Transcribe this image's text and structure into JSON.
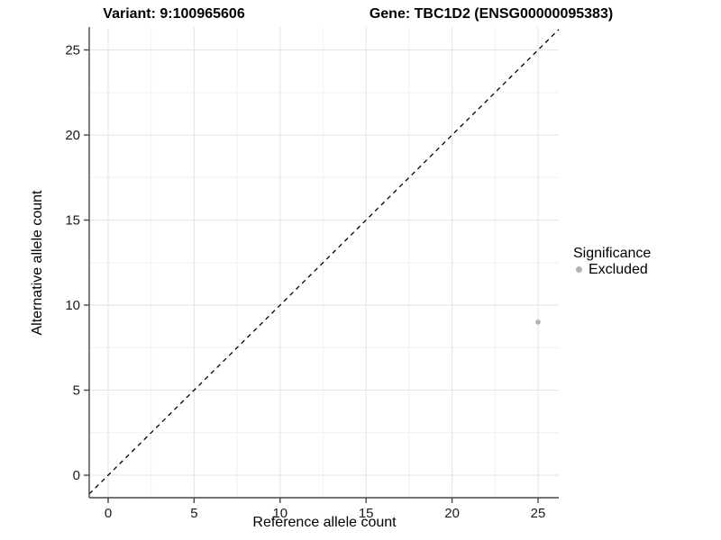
{
  "chart_data": {
    "type": "scatter",
    "title_left": "Variant: 9:100965606",
    "title_right": "Gene: TBC1D2 (ENSG00000095383)",
    "xlabel": "Reference allele count",
    "ylabel": "Alternative allele count",
    "xlim": [
      0,
      25
    ],
    "ylim": [
      0,
      25
    ],
    "x_ticks": [
      0,
      5,
      10,
      15,
      20,
      25
    ],
    "y_ticks": [
      0,
      5,
      10,
      15,
      20,
      25
    ],
    "grid": "major and minor, light gray on white panel",
    "reference_line": {
      "type": "abline",
      "slope": 1,
      "intercept": 0,
      "style": "dashed",
      "color": "#000000"
    },
    "points": [
      {
        "x": 25,
        "y": 9,
        "significance": "Excluded",
        "color": "#b3b3b3"
      }
    ],
    "legend": {
      "title": "Significance",
      "position": "right",
      "entries": [
        {
          "label": "Excluded",
          "color": "#b3b3b3",
          "marker": "circle"
        }
      ]
    }
  }
}
